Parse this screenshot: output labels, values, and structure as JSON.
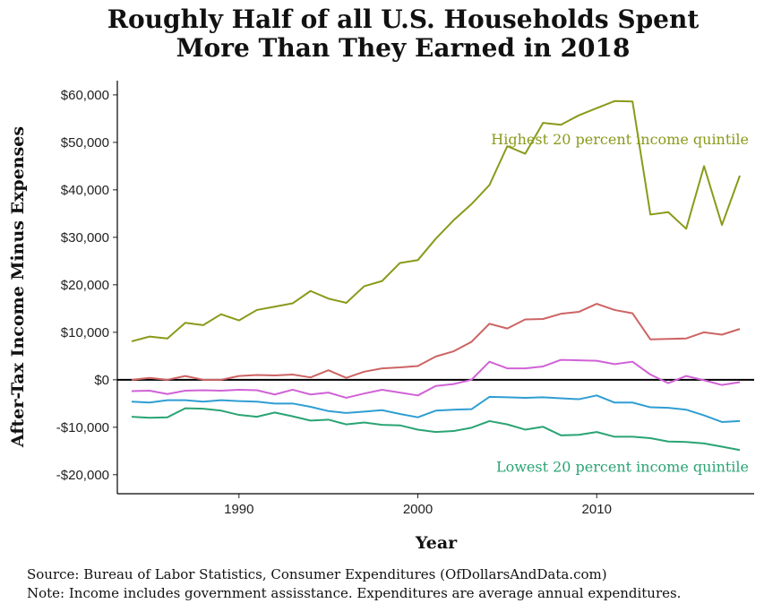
{
  "chart_data": {
    "type": "line",
    "title_lines": [
      "Roughly Half of all U.S. Households Spent",
      "More Than They Earned in 2018"
    ],
    "xlabel": "Year",
    "ylabel": "After-Tax Income Minus Expenses",
    "xlim": [
      1983.2,
      2018.8
    ],
    "ylim": [
      -24000,
      63000
    ],
    "x_ticks": [
      1990,
      2000,
      2010
    ],
    "y_ticks": [
      -20000,
      -10000,
      0,
      10000,
      20000,
      30000,
      40000,
      50000,
      60000
    ],
    "y_tick_labels": [
      "-$20,000",
      "-$10,000",
      "$0",
      "$10,000",
      "$20,000",
      "$30,000",
      "$40,000",
      "$50,000",
      "$60,000"
    ],
    "x": [
      1984,
      1985,
      1986,
      1987,
      1988,
      1989,
      1990,
      1991,
      1992,
      1993,
      1994,
      1995,
      1996,
      1997,
      1998,
      1999,
      2000,
      2001,
      2002,
      2003,
      2004,
      2005,
      2006,
      2007,
      2008,
      2009,
      2010,
      2011,
      2012,
      2013,
      2014,
      2015,
      2016,
      2017,
      2018
    ],
    "series": [
      {
        "color": "#8a9a1a",
        "values": [
          8100,
          9100,
          8700,
          12000,
          11500,
          13800,
          12500,
          14700,
          15400,
          16100,
          18700,
          17100,
          16200,
          19700,
          20800,
          24600,
          25200,
          29700,
          33600,
          37000,
          41000,
          49200,
          47600,
          54100,
          53700,
          55700,
          57200,
          58700,
          58600,
          34800,
          35300,
          31800,
          45000,
          32600,
          43000
        ]
      },
      {
        "color": "#cd6464",
        "values": [
          0,
          400,
          0,
          800,
          0,
          0,
          800,
          1000,
          900,
          1100,
          500,
          2000,
          400,
          1700,
          2400,
          2600,
          2900,
          4900,
          6000,
          8000,
          11800,
          10800,
          12700,
          12800,
          13900,
          14300,
          16000,
          14700,
          14000,
          8500,
          8600,
          8700,
          10000,
          9500,
          10700
        ]
      },
      {
        "color": "#d062d6",
        "values": [
          -2400,
          -2300,
          -3000,
          -2300,
          -2200,
          -2300,
          -2100,
          -2200,
          -3100,
          -2100,
          -3100,
          -2700,
          -3800,
          -2900,
          -2100,
          -2700,
          -3300,
          -1300,
          -900,
          0,
          3800,
          2400,
          2400,
          2800,
          4200,
          4100,
          4000,
          3300,
          3800,
          1100,
          -700,
          800,
          -100,
          -1100,
          -500
        ]
      },
      {
        "color": "#2f9ed2",
        "values": [
          -4600,
          -4800,
          -4300,
          -4300,
          -4600,
          -4300,
          -4500,
          -4600,
          -5000,
          -5000,
          -5700,
          -6600,
          -7000,
          -6700,
          -6400,
          -7200,
          -7900,
          -6500,
          -6300,
          -6200,
          -3600,
          -3700,
          -3800,
          -3700,
          -3900,
          -4100,
          -3300,
          -4800,
          -4800,
          -5800,
          -5900,
          -6300,
          -7500,
          -8900,
          -8700
        ]
      },
      {
        "color": "#2aa473",
        "values": [
          -7800,
          -8000,
          -7900,
          -6000,
          -6100,
          -6500,
          -7400,
          -7800,
          -6900,
          -7700,
          -8600,
          -8400,
          -9400,
          -9000,
          -9500,
          -9600,
          -10500,
          -11000,
          -10800,
          -10100,
          -8700,
          -9400,
          -10500,
          -9900,
          -11700,
          -11600,
          -11000,
          -12000,
          -12000,
          -12300,
          -13000,
          -13100,
          -13400,
          -14100,
          -14800
        ]
      }
    ],
    "annotations": [
      {
        "text": "Highest 20 percent income quintile",
        "color": "#8a9a1a",
        "x": 2018.5,
        "y": 50500
      },
      {
        "text": "Lowest 20 percent income quintile",
        "color": "#2aa473",
        "x": 2018.5,
        "y": -18400
      }
    ],
    "reference_line_y": 0,
    "grid": false
  },
  "caption": {
    "source": "Source:  Bureau of Labor Statistics, Consumer Expenditures (OfDollarsAndData.com)",
    "note": "Note:  Income includes government assisstance.  Expenditures are average annual expenditures."
  }
}
